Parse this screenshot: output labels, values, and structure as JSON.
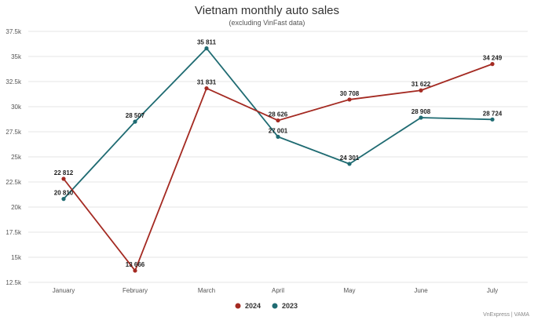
{
  "chart_data": {
    "type": "line",
    "title": "Vietnam monthly auto sales",
    "subtitle": "(excluding VinFast data)",
    "categories": [
      "January",
      "February",
      "March",
      "April",
      "May",
      "June",
      "July"
    ],
    "series": [
      {
        "name": "2024",
        "color": "#a42a22",
        "values": [
          22812,
          13666,
          31831,
          28626,
          30708,
          31622,
          34249
        ],
        "labels": [
          "22 812",
          "13 666",
          "31 831",
          "28 626",
          "30 708",
          "31 622",
          "34 249"
        ]
      },
      {
        "name": "2023",
        "color": "#1f6b72",
        "values": [
          20810,
          28507,
          35811,
          27001,
          24301,
          28908,
          28724
        ],
        "labels": [
          "20 810",
          "28 507",
          "35 811",
          "27 001",
          "24 301",
          "28 908",
          "28 724"
        ]
      }
    ],
    "ylim": [
      12500,
      37500
    ],
    "yticks": [
      12500,
      15000,
      17500,
      20000,
      22500,
      25000,
      27500,
      30000,
      32500,
      35000,
      37500
    ],
    "ytick_labels": [
      "12.5k",
      "15k",
      "17.5k",
      "20k",
      "22.5k",
      "25k",
      "27.5k",
      "30k",
      "32.5k",
      "35k",
      "37.5k"
    ],
    "grid": true,
    "legend_position": "bottom-center"
  },
  "credit": "VnExpress | VAMA"
}
